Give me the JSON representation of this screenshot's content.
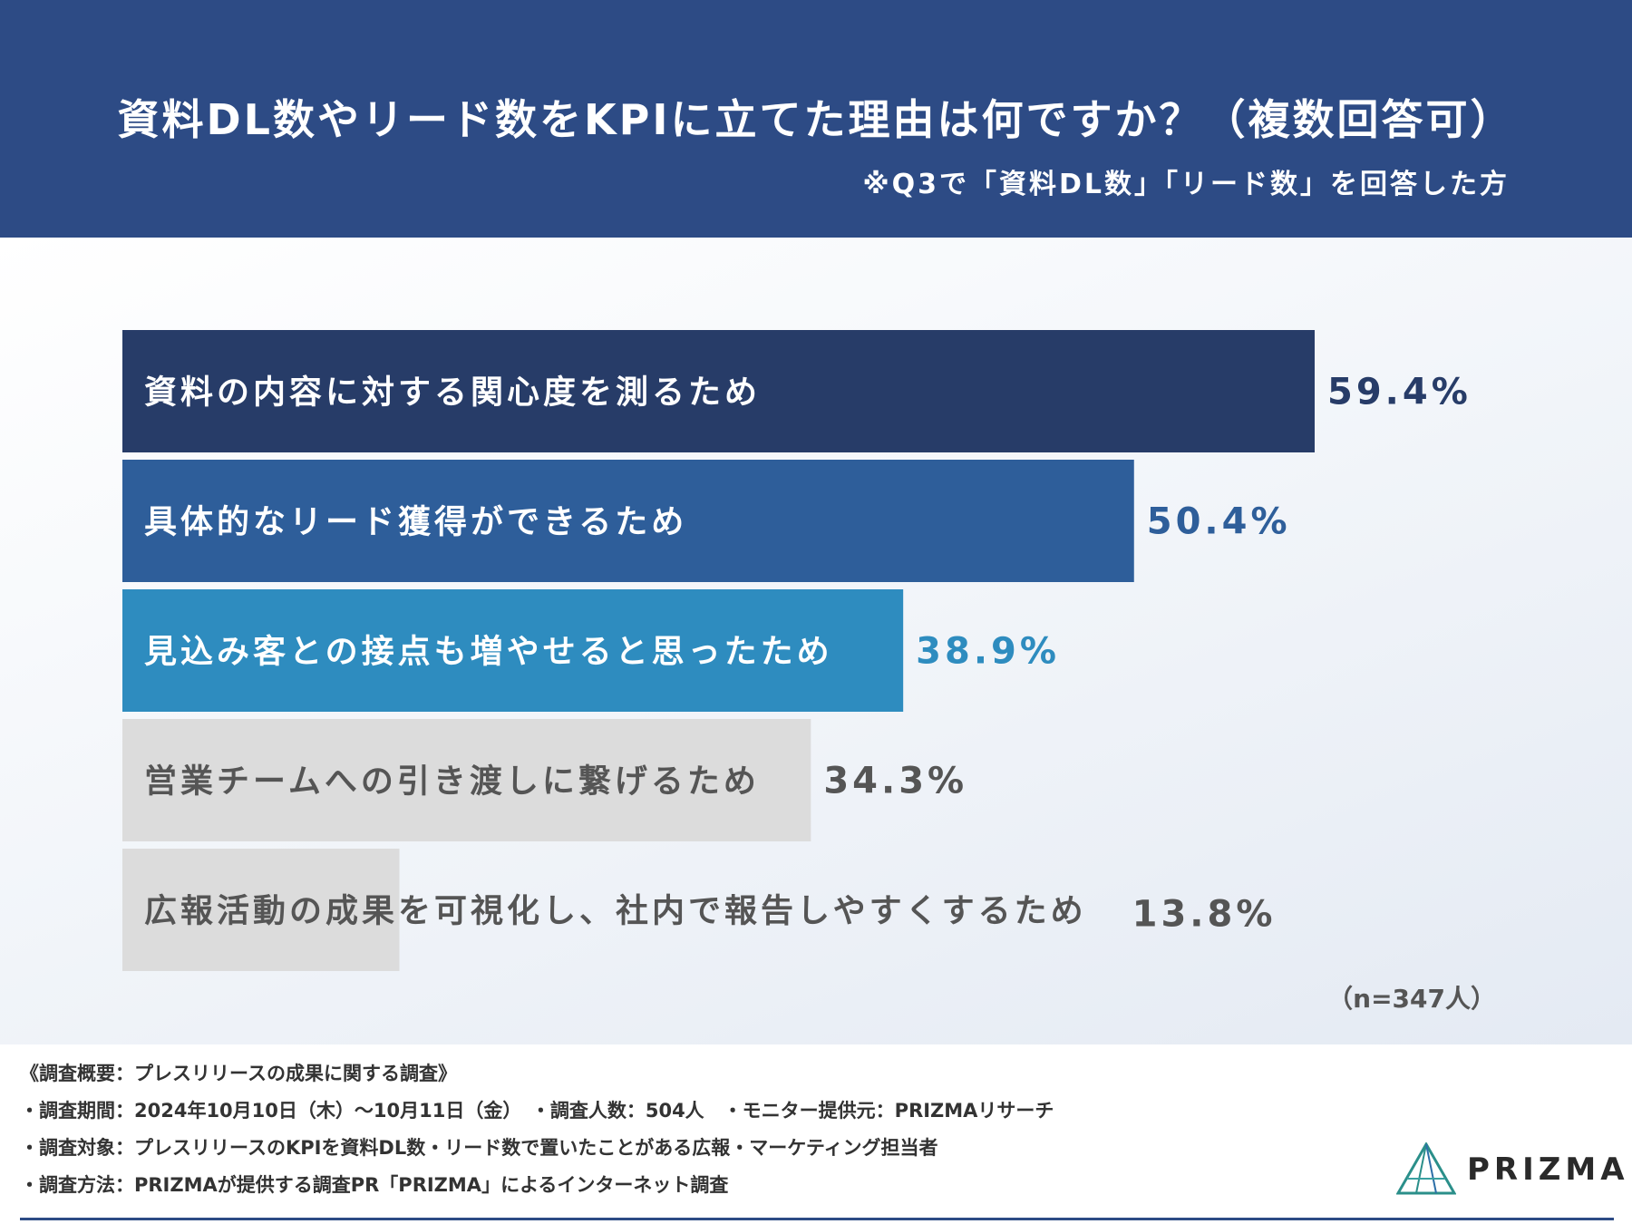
{
  "header": {
    "title": "資料DL数やリード数をKPIに立てた理由は何ですか？（複数回答可）",
    "subtitle": "※Q3で「資料DL数」「リード数」を回答した方"
  },
  "chart_data": {
    "type": "bar",
    "orientation": "horizontal",
    "title": "資料DL数やリード数をKPIに立てた理由は何ですか？（複数回答可）",
    "categories": [
      "資料の内容に対する関心度を測るため",
      "具体的なリード獲得ができるため",
      "見込み客との接点も増やせると思ったため",
      "営業チームへの引き渡しに繋げるため",
      "広報活動の成果を可視化し、社内で報告しやすくするため"
    ],
    "values": [
      59.4,
      50.4,
      38.9,
      34.3,
      13.8
    ],
    "value_labels": [
      "59.4%",
      "50.4%",
      "38.9%",
      "34.3%",
      "13.8%"
    ],
    "unit": "%",
    "colors": [
      "#273c68",
      "#2e5e9a",
      "#2e8cbf",
      "#dcdcdc",
      "#dcdcdc"
    ],
    "label_colors": [
      "#ffffff",
      "#ffffff",
      "#ffffff",
      "#555555",
      "#555555"
    ],
    "value_colors": [
      "#273c68",
      "#2e5e9a",
      "#2e8cbf",
      "#555555",
      "#555555"
    ],
    "xlim": [
      0,
      59.4
    ],
    "grid": false,
    "legend": "none",
    "note": "（n=347人）"
  },
  "footer": {
    "lines": [
      "《調査概要：プレスリリースの成果に関する調査》",
      "・調査期間：2024年10月10日（木）〜10月11日（金）　・調査人数：504人　・モニター提供元：PRIZMAリサーチ",
      "・調査対象：プレスリリースのKPIを資料DL数・リード数で置いたことがある広報・マーケティング担当者",
      "・調査方法：PRIZMAが提供する調査PR「PRIZMA」によるインターネット調査"
    ],
    "brand": "PRIZMA",
    "accent": "#2d4b85"
  }
}
